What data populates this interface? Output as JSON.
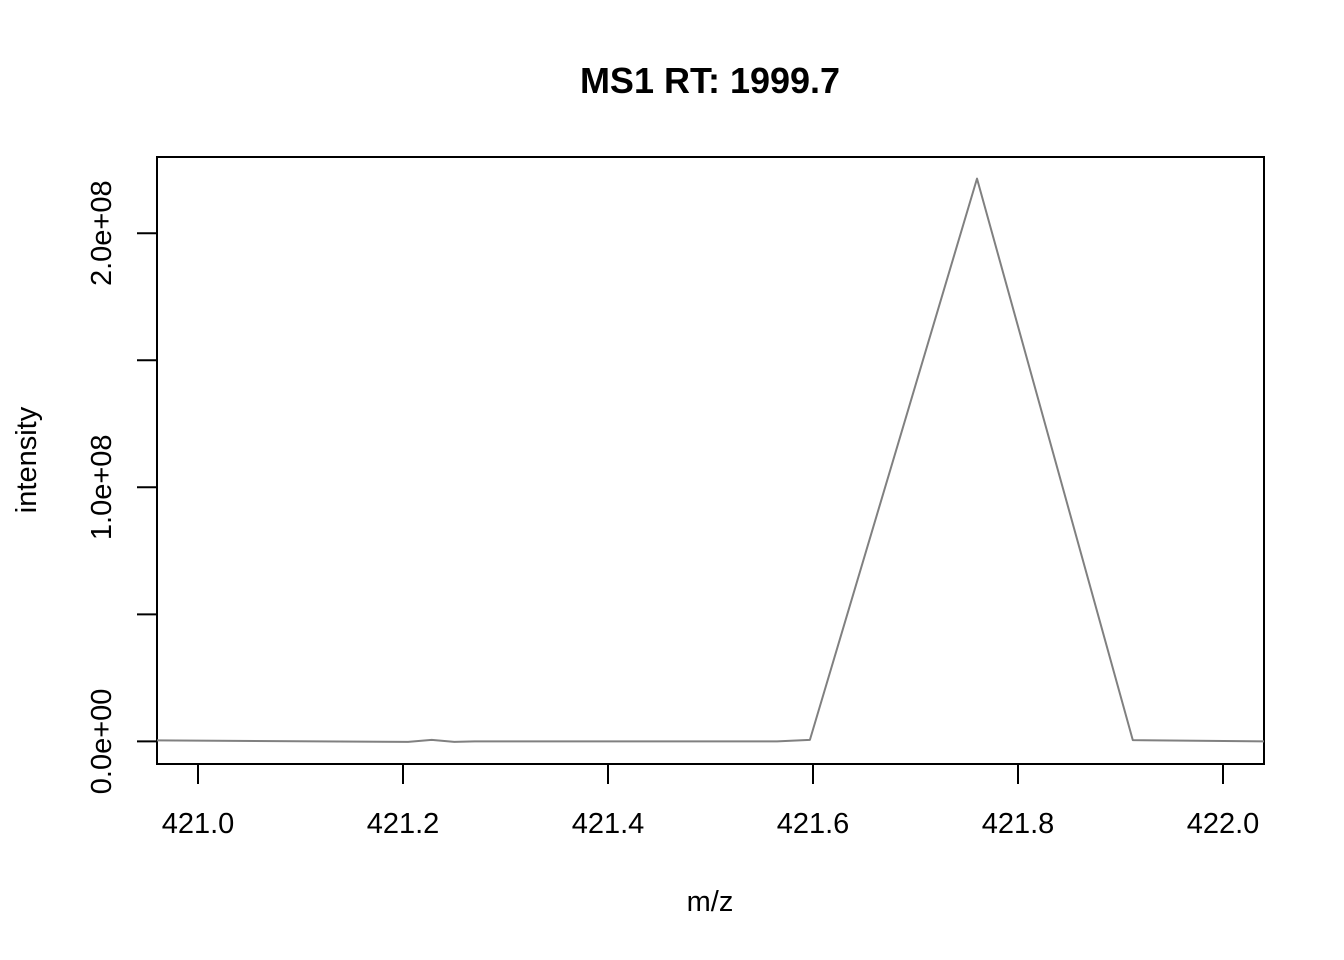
{
  "chart_data": {
    "type": "line",
    "title": "MS1 RT: 1999.7",
    "xlabel": "m/z",
    "ylabel": "intensity",
    "xlim": [
      420.96,
      422.04
    ],
    "ylim": [
      -8900000,
      230000000
    ],
    "x_ticks": [
      421.0,
      421.2,
      421.4,
      421.6,
      421.8,
      422.0
    ],
    "x_tick_labels": [
      "421.0",
      "421.2",
      "421.4",
      "421.6",
      "421.8",
      "422.0"
    ],
    "y_ticks": [
      0,
      50000000,
      100000000,
      150000000,
      200000000
    ],
    "y_tick_labels": [
      "0.0e+00",
      "",
      "1.0e+08",
      "",
      "2.0e+08"
    ],
    "grid": false,
    "legend": "none",
    "line_color": "#808080",
    "series": [
      {
        "x": [
          420.96,
          421.205,
          421.228,
          421.25,
          421.27,
          421.565,
          421.597,
          421.76,
          421.912,
          422.04
        ],
        "y": [
          400000,
          -200000,
          600000,
          -200000,
          0,
          0,
          600000,
          221500000,
          500000,
          0
        ]
      }
    ]
  }
}
